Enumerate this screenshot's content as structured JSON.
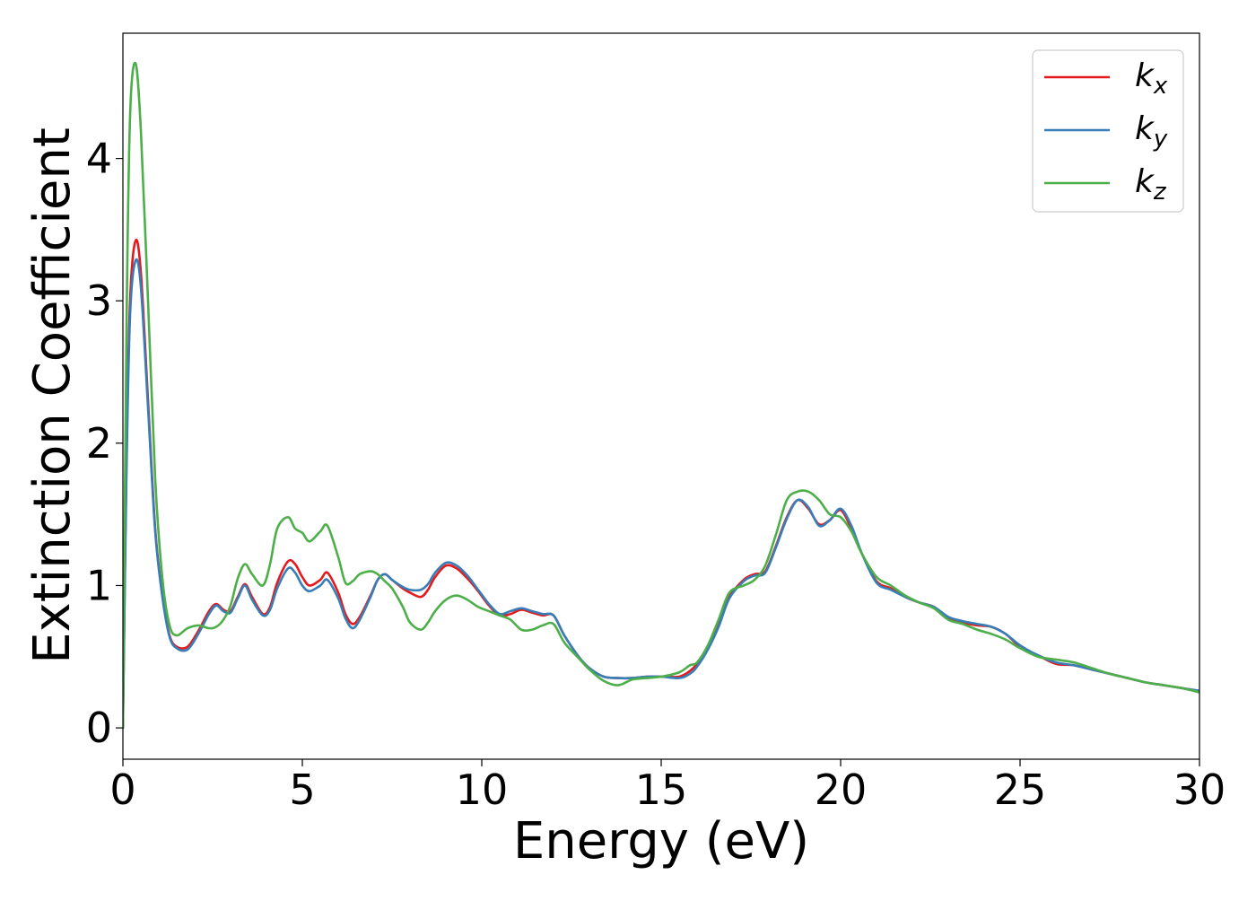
{
  "chart_data": {
    "type": "line",
    "title": "",
    "xlabel": "Energy (eV)",
    "ylabel": "Extinction Coefficient",
    "xlim": [
      0,
      30
    ],
    "ylim": [
      -0.22,
      4.88
    ],
    "xticks": [
      0,
      5,
      10,
      15,
      20,
      25,
      30
    ],
    "yticks": [
      0,
      1,
      2,
      3,
      4
    ],
    "xtick_labels": [
      "0",
      "5",
      "10",
      "15",
      "20",
      "25",
      "30"
    ],
    "ytick_labels": [
      "0",
      "1",
      "2",
      "3",
      "4"
    ],
    "grid": false,
    "legend": {
      "position": "top-right"
    },
    "series": [
      {
        "key": "kx",
        "name": "k",
        "subscript": "x",
        "color": "#e41a1c",
        "x": [
          0,
          0.1,
          0.2,
          0.35,
          0.5,
          0.7,
          0.9,
          1.1,
          1.3,
          1.5,
          1.8,
          2.1,
          2.4,
          2.6,
          2.8,
          3.0,
          3.2,
          3.4,
          3.6,
          3.9,
          4.1,
          4.3,
          4.6,
          4.8,
          5.0,
          5.2,
          5.5,
          5.7,
          6.0,
          6.2,
          6.4,
          6.6,
          6.9,
          7.1,
          7.3,
          7.5,
          7.8,
          8.0,
          8.3,
          8.5,
          8.7,
          9.0,
          9.3,
          9.6,
          9.9,
          10.2,
          10.5,
          10.8,
          11.1,
          11.4,
          11.7,
          12.0,
          12.3,
          12.7,
          13.0,
          13.4,
          13.8,
          14.2,
          14.6,
          15.0,
          15.5,
          15.8,
          16.0,
          16.3,
          16.6,
          16.9,
          17.3,
          17.6,
          17.9,
          18.2,
          18.5,
          18.8,
          19.1,
          19.4,
          19.7,
          20.0,
          20.3,
          20.6,
          21.0,
          21.4,
          21.8,
          22.2,
          22.6,
          23.0,
          23.4,
          23.8,
          24.2,
          24.6,
          25.0,
          25.5,
          26.0,
          26.5,
          27.0,
          27.5,
          28.0,
          28.5,
          29.0,
          29.5,
          30.0
        ],
        "y": [
          0.0,
          1.9,
          3.0,
          3.42,
          3.2,
          2.3,
          1.4,
          0.93,
          0.65,
          0.57,
          0.57,
          0.68,
          0.82,
          0.87,
          0.83,
          0.82,
          0.92,
          1.01,
          0.92,
          0.8,
          0.85,
          1.02,
          1.17,
          1.15,
          1.06,
          1.0,
          1.04,
          1.09,
          0.95,
          0.8,
          0.73,
          0.78,
          0.93,
          1.04,
          1.08,
          1.04,
          0.98,
          0.95,
          0.92,
          0.97,
          1.06,
          1.14,
          1.12,
          1.05,
          0.96,
          0.86,
          0.79,
          0.8,
          0.83,
          0.81,
          0.79,
          0.79,
          0.65,
          0.5,
          0.42,
          0.36,
          0.35,
          0.35,
          0.36,
          0.36,
          0.36,
          0.4,
          0.45,
          0.56,
          0.72,
          0.92,
          1.04,
          1.08,
          1.1,
          1.28,
          1.48,
          1.6,
          1.54,
          1.43,
          1.46,
          1.53,
          1.4,
          1.22,
          1.03,
          0.98,
          0.92,
          0.88,
          0.85,
          0.77,
          0.74,
          0.72,
          0.71,
          0.66,
          0.57,
          0.51,
          0.45,
          0.44,
          0.41,
          0.38,
          0.35,
          0.32,
          0.3,
          0.28,
          0.26
        ]
      },
      {
        "key": "ky",
        "name": "k",
        "subscript": "y",
        "color": "#377eb8",
        "x": [
          0,
          0.1,
          0.2,
          0.35,
          0.5,
          0.7,
          0.9,
          1.1,
          1.3,
          1.5,
          1.8,
          2.1,
          2.4,
          2.6,
          2.8,
          3.0,
          3.2,
          3.4,
          3.6,
          3.9,
          4.1,
          4.3,
          4.6,
          4.8,
          5.0,
          5.2,
          5.5,
          5.7,
          6.0,
          6.2,
          6.4,
          6.6,
          6.9,
          7.1,
          7.3,
          7.5,
          7.8,
          8.0,
          8.3,
          8.5,
          8.7,
          9.0,
          9.3,
          9.6,
          9.9,
          10.2,
          10.5,
          10.8,
          11.1,
          11.4,
          11.7,
          12.0,
          12.3,
          12.7,
          13.0,
          13.4,
          13.8,
          14.2,
          14.6,
          15.0,
          15.5,
          15.8,
          16.0,
          16.3,
          16.6,
          16.9,
          17.3,
          17.6,
          17.9,
          18.2,
          18.5,
          18.8,
          19.1,
          19.4,
          19.7,
          20.0,
          20.3,
          20.6,
          21.0,
          21.4,
          21.8,
          22.2,
          22.6,
          23.0,
          23.4,
          23.8,
          24.2,
          24.6,
          25.0,
          25.5,
          26.0,
          26.5,
          27.0,
          27.5,
          28.0,
          28.5,
          29.0,
          29.5,
          30.0
        ],
        "y": [
          0.0,
          1.8,
          2.9,
          3.28,
          3.1,
          2.25,
          1.38,
          0.92,
          0.64,
          0.56,
          0.55,
          0.66,
          0.8,
          0.86,
          0.82,
          0.81,
          0.91,
          1.0,
          0.9,
          0.79,
          0.83,
          0.98,
          1.12,
          1.09,
          1.0,
          0.96,
          1.0,
          1.04,
          0.91,
          0.77,
          0.7,
          0.76,
          0.92,
          1.04,
          1.08,
          1.04,
          0.99,
          0.97,
          0.97,
          1.01,
          1.09,
          1.16,
          1.14,
          1.07,
          0.97,
          0.87,
          0.8,
          0.82,
          0.84,
          0.82,
          0.8,
          0.79,
          0.65,
          0.5,
          0.42,
          0.36,
          0.35,
          0.35,
          0.36,
          0.36,
          0.35,
          0.38,
          0.43,
          0.55,
          0.71,
          0.91,
          1.03,
          1.07,
          1.09,
          1.27,
          1.47,
          1.6,
          1.55,
          1.42,
          1.46,
          1.54,
          1.42,
          1.22,
          1.02,
          0.97,
          0.92,
          0.88,
          0.85,
          0.78,
          0.75,
          0.73,
          0.71,
          0.66,
          0.58,
          0.51,
          0.46,
          0.44,
          0.41,
          0.38,
          0.35,
          0.32,
          0.3,
          0.28,
          0.26
        ]
      },
      {
        "key": "kz",
        "name": "k",
        "subscript": "z",
        "color": "#4daf4a",
        "x": [
          0,
          0.1,
          0.2,
          0.35,
          0.5,
          0.7,
          0.9,
          1.1,
          1.3,
          1.5,
          1.8,
          2.1,
          2.4,
          2.6,
          2.8,
          3.0,
          3.2,
          3.4,
          3.6,
          3.9,
          4.1,
          4.3,
          4.6,
          4.8,
          5.0,
          5.2,
          5.5,
          5.7,
          6.0,
          6.2,
          6.4,
          6.6,
          6.9,
          7.1,
          7.3,
          7.5,
          7.8,
          8.0,
          8.3,
          8.5,
          8.7,
          9.0,
          9.3,
          9.6,
          9.9,
          10.2,
          10.5,
          10.8,
          11.1,
          11.4,
          11.7,
          12.0,
          12.3,
          12.7,
          13.0,
          13.4,
          13.8,
          14.2,
          14.6,
          15.0,
          15.5,
          15.8,
          16.0,
          16.3,
          16.6,
          16.9,
          17.3,
          17.6,
          17.9,
          18.2,
          18.5,
          18.8,
          19.1,
          19.4,
          19.7,
          20.0,
          20.3,
          20.6,
          21.0,
          21.4,
          21.8,
          22.2,
          22.6,
          23.0,
          23.4,
          23.8,
          24.2,
          24.6,
          25.0,
          25.5,
          26.0,
          26.5,
          27.0,
          27.5,
          28.0,
          28.5,
          29.0,
          29.5,
          30.0
        ],
        "y": [
          0.0,
          2.8,
          4.3,
          4.67,
          4.2,
          3.0,
          1.75,
          1.05,
          0.72,
          0.65,
          0.7,
          0.72,
          0.7,
          0.71,
          0.76,
          0.86,
          1.05,
          1.15,
          1.08,
          1.0,
          1.15,
          1.4,
          1.48,
          1.4,
          1.37,
          1.31,
          1.38,
          1.42,
          1.2,
          1.02,
          1.03,
          1.08,
          1.1,
          1.08,
          1.03,
          0.98,
          0.85,
          0.74,
          0.69,
          0.74,
          0.82,
          0.9,
          0.93,
          0.9,
          0.85,
          0.82,
          0.79,
          0.76,
          0.69,
          0.69,
          0.72,
          0.73,
          0.6,
          0.49,
          0.41,
          0.33,
          0.3,
          0.34,
          0.35,
          0.36,
          0.39,
          0.44,
          0.46,
          0.58,
          0.76,
          0.95,
          1.0,
          1.04,
          1.14,
          1.36,
          1.6,
          1.66,
          1.66,
          1.6,
          1.5,
          1.48,
          1.38,
          1.22,
          1.06,
          1.0,
          0.93,
          0.88,
          0.84,
          0.76,
          0.73,
          0.69,
          0.66,
          0.62,
          0.56,
          0.5,
          0.48,
          0.46,
          0.42,
          0.38,
          0.35,
          0.32,
          0.3,
          0.28,
          0.25
        ]
      }
    ]
  }
}
